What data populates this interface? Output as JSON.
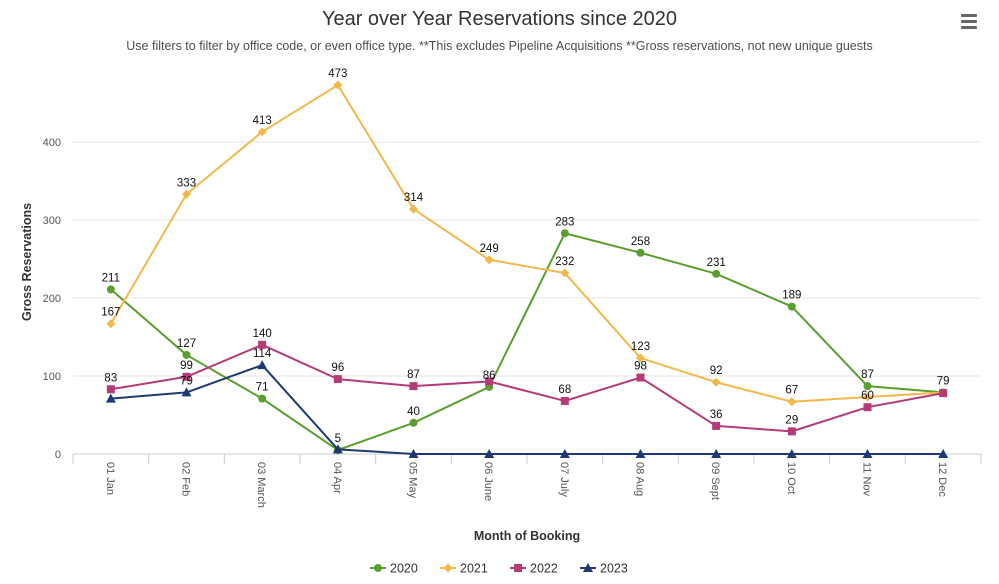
{
  "toolbar": {
    "menu_icon": "hamburger-menu-icon"
  },
  "chart_data": {
    "type": "line",
    "title": "Year over Year Reservations since 2020",
    "subtitle": "Use filters to filter by office code, or even office type. **This excludes Pipeline Acquisitions **Gross reservations, not new unique guests",
    "xlabel": "Month of Booking",
    "ylabel": "Gross Reservations",
    "categories": [
      "01 Jan",
      "02 Feb",
      "03 March",
      "04 Apr",
      "05 May",
      "06 June",
      "07 July",
      "08 Aug",
      "09 Sept",
      "10 Oct",
      "11 Nov",
      "12 Dec"
    ],
    "ylim": [
      0,
      473
    ],
    "yticks": [
      0,
      100,
      200,
      300,
      400
    ],
    "grid": true,
    "legend_position": "bottom-center",
    "series": [
      {
        "name": "2020",
        "color": "#5a9e2f",
        "marker": "circle",
        "values": [
          211,
          127,
          71,
          5,
          40,
          86,
          283,
          258,
          231,
          189,
          87,
          79
        ],
        "labels": [
          "211",
          "127",
          "71",
          "5",
          "40",
          "86",
          "283",
          "258",
          "231",
          "189",
          "87",
          "79"
        ]
      },
      {
        "name": "2021",
        "color": "#f2b84b",
        "marker": "diamond",
        "values": [
          167,
          333,
          413,
          473,
          314,
          249,
          232,
          123,
          92,
          67,
          73,
          79
        ],
        "labels": [
          "167",
          "333",
          "413",
          "473",
          "314",
          "249",
          "232",
          "123",
          "92",
          "67",
          "",
          ""
        ]
      },
      {
        "name": "2022",
        "color": "#b43a78",
        "marker": "square",
        "values": [
          83,
          99,
          140,
          96,
          87,
          93,
          68,
          98,
          36,
          29,
          60,
          78
        ],
        "labels": [
          "83",
          "99",
          "140",
          "96",
          "87",
          "",
          "68",
          "98",
          "36",
          "29",
          "60",
          ""
        ]
      },
      {
        "name": "2023",
        "color": "#1f3a73",
        "marker": "triangle",
        "values": [
          71,
          79,
          114,
          6,
          0,
          0,
          0,
          0,
          0,
          0,
          0,
          0
        ],
        "labels": [
          "",
          "79",
          "114",
          "",
          "",
          "",
          "",
          "",
          "",
          "",
          "",
          ""
        ]
      }
    ]
  }
}
